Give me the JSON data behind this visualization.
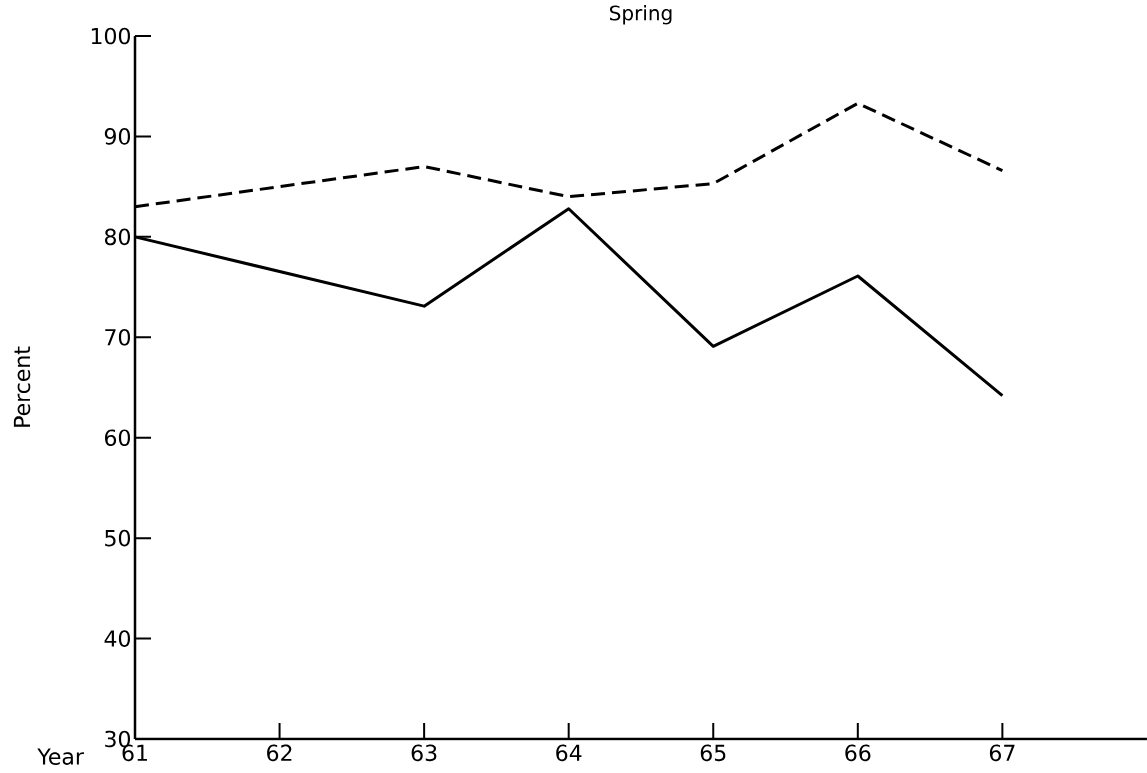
{
  "chart_data": {
    "type": "line",
    "title": "Spring",
    "xlabel": "Year",
    "ylabel": "Percent",
    "x": [
      61,
      63,
      64,
      65,
      66,
      67
    ],
    "series": [
      {
        "color": "#000000",
        "line_style": "dashed",
        "values": [
          83,
          87,
          84,
          85.3,
          93.3,
          86.6
        ]
      },
      {
        "color": "#000000",
        "line_style": "solid",
        "values": [
          80,
          73.1,
          82.8,
          69.1,
          76.1,
          64.2
        ]
      }
    ],
    "xlim": [
      61,
      68
    ],
    "ylim": [
      30,
      100
    ],
    "xticks": [
      61,
      62,
      63,
      64,
      65,
      66,
      67
    ],
    "yticks": [
      30,
      40,
      50,
      60,
      70,
      80,
      90,
      100
    ],
    "grid": false
  }
}
